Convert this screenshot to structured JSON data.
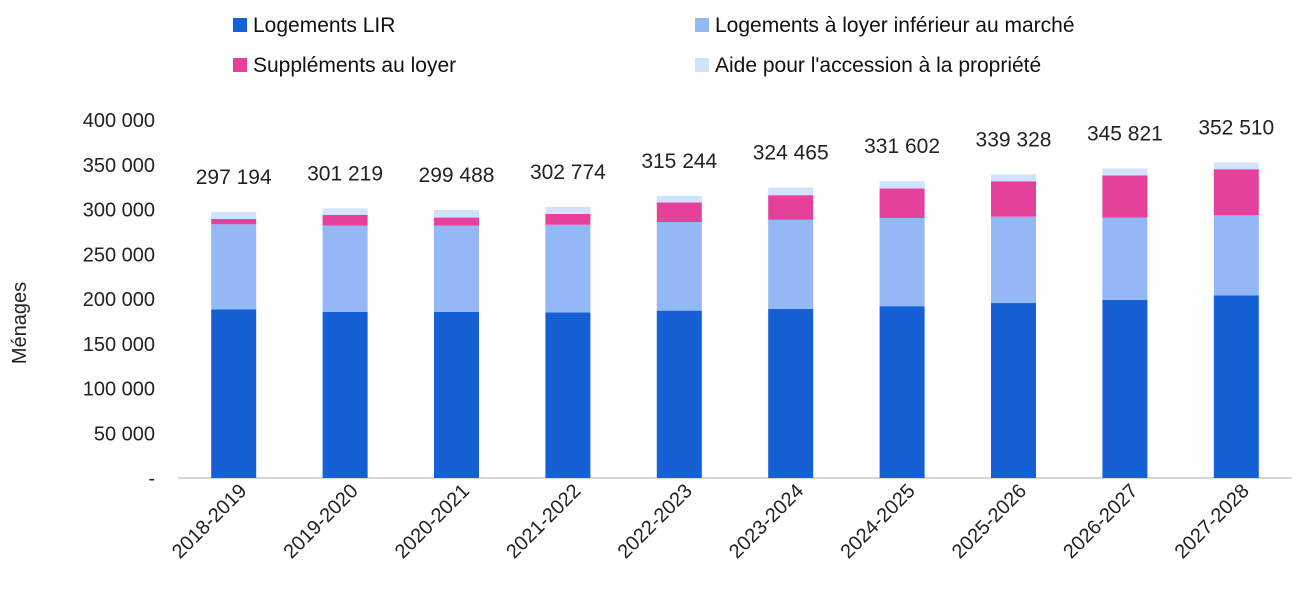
{
  "chart_data": {
    "type": "bar",
    "stacked": true,
    "title": "",
    "xlabel": "",
    "ylabel": "Ménages",
    "ylim": [
      0,
      400000
    ],
    "yticks": [
      0,
      50000,
      100000,
      150000,
      200000,
      250000,
      300000,
      350000,
      400000
    ],
    "ytick_labels": [
      "-",
      "50 000",
      "100 000",
      "150 000",
      "200 000",
      "250 000",
      "300 000",
      "350 000",
      "400 000"
    ],
    "grid": false,
    "legend_position": "top",
    "categories": [
      "2018-2019",
      "2019-2020",
      "2020-2021",
      "2021-2022",
      "2022-2023",
      "2023-2024",
      "2024-2025",
      "2025-2026",
      "2026-2027",
      "2027-2028"
    ],
    "series": [
      {
        "name": "Logements LIR",
        "color": "#1560d4",
        "values": [
          188500,
          185500,
          185500,
          185000,
          187000,
          189000,
          192000,
          195500,
          199000,
          204000
        ]
      },
      {
        "name": "Logements à loyer inférieur au marché",
        "color": "#94b8f5",
        "values": [
          95000,
          96500,
          96500,
          98000,
          99000,
          99500,
          98500,
          96500,
          92000,
          89500
        ]
      },
      {
        "name": "Suppléments au loyer",
        "color": "#e5409a",
        "values": [
          6000,
          12000,
          9000,
          12000,
          22000,
          27500,
          33000,
          39500,
          47000,
          51500
        ]
      },
      {
        "name": "Aide pour l'accession à la propriété",
        "color": "#cfe3fd",
        "values": [
          7694,
          7219,
          8488,
          7774,
          7244,
          8465,
          8102,
          7828,
          7821,
          7510
        ]
      }
    ],
    "total_labels": [
      "297 194",
      "301 219",
      "299 488",
      "302 774",
      "315 244",
      "324 465",
      "331 602",
      "339 328",
      "345 821",
      "352 510"
    ]
  }
}
